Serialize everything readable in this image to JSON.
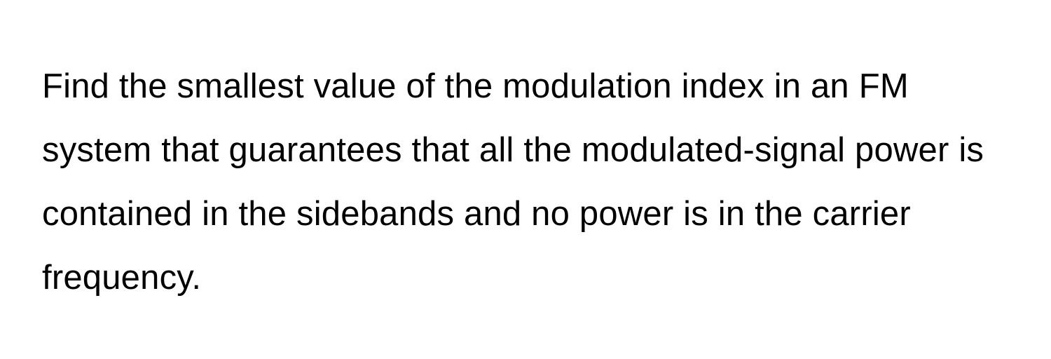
{
  "question": {
    "text": "Find the smallest value of the modulation index in an FM system that guarantees that all the modulated-signal power is contained in the sidebands and no power is in the carrier frequency.",
    "font_size": 49,
    "line_height": 1.86,
    "color": "#000000",
    "background_color": "#ffffff",
    "font_weight": 400
  }
}
